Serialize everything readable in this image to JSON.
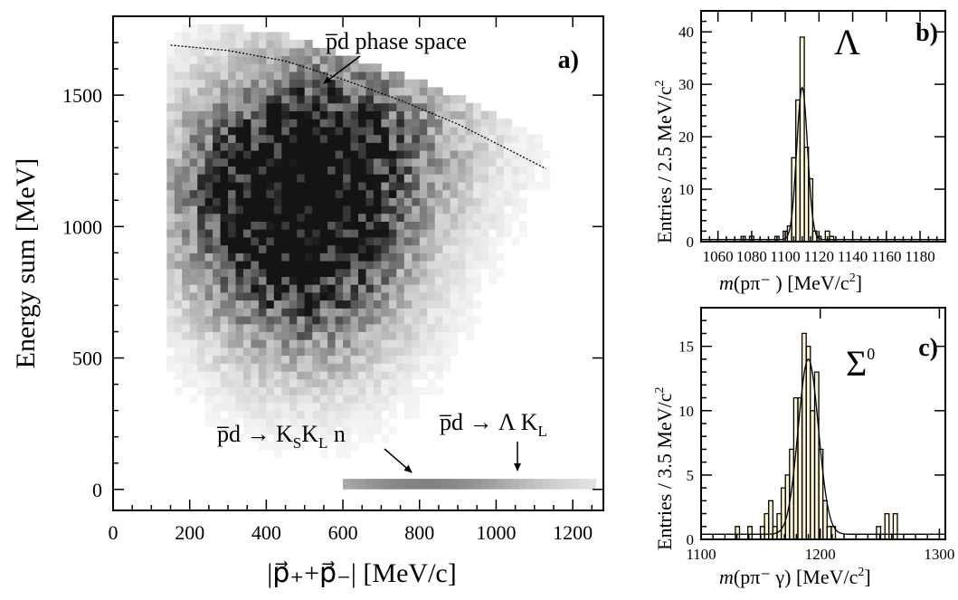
{
  "chart_data": [
    {
      "panel": "a)",
      "type": "heatmap",
      "xlabel": "|p⃗₊+p⃗₋|  [MeV/c]",
      "ylabel": "Energy sum [MeV]",
      "xlim": [
        0,
        1280
      ],
      "ylim": [
        -80,
        1800
      ],
      "x_ticks": [
        0,
        200,
        400,
        600,
        800,
        1000,
        1200
      ],
      "y_ticks": [
        0,
        500,
        1000,
        1500
      ],
      "blobs": [
        {
          "x": 500,
          "y": 950,
          "sx": 180,
          "sy": 320,
          "amp": 1.0
        },
        {
          "x": 600,
          "y": 1350,
          "sx": 230,
          "sy": 250,
          "amp": 0.55
        },
        {
          "x": 350,
          "y": 1100,
          "sx": 150,
          "sy": 250,
          "amp": 0.45
        }
      ],
      "bands": [
        {
          "x_from": 600,
          "x_to": 1250,
          "y": 20,
          "peak_x": 800
        }
      ],
      "phase_space_curve": {
        "x": [
          150,
          300,
          450,
          600,
          750,
          900,
          1050,
          1130
        ],
        "y": [
          1690,
          1670,
          1630,
          1560,
          1480,
          1390,
          1280,
          1220
        ]
      },
      "annotations": [
        {
          "text": "p̅d phase space"
        },
        {
          "text": "p̅d → K",
          "sub1": "S",
          "mid": "K",
          "sub2": "L",
          "tail": " n"
        },
        {
          "text": "p̅d → Λ K",
          "sub1": "L"
        }
      ]
    },
    {
      "panel": "b)",
      "type": "bar",
      "symbol": "Λ",
      "xlabel_italic": "m",
      "xlabel_rest": "(pπ⁻ )  [MeV/c",
      "xlabel_sup": "2",
      "xlabel_end": "]",
      "ylabel": "Entries / 2.5 MeV/c",
      "ylabel_sup": "2",
      "xlim": [
        1050,
        1195
      ],
      "ylim": [
        0,
        44
      ],
      "x_ticks": [
        1060,
        1080,
        1100,
        1120,
        1140,
        1160,
        1180
      ],
      "y_ticks": [
        0,
        10,
        20,
        30,
        40
      ],
      "bin_width": 2.5,
      "bins": [
        {
          "x": 1075,
          "v": 1
        },
        {
          "x": 1080,
          "v": 1
        },
        {
          "x": 1095,
          "v": 1
        },
        {
          "x": 1100,
          "v": 2
        },
        {
          "x": 1102.5,
          "v": 3
        },
        {
          "x": 1105,
          "v": 16
        },
        {
          "x": 1107.5,
          "v": 27
        },
        {
          "x": 1110,
          "v": 39
        },
        {
          "x": 1112.5,
          "v": 18
        },
        {
          "x": 1115,
          "v": 12
        },
        {
          "x": 1117.5,
          "v": 2
        },
        {
          "x": 1120,
          "v": 1
        },
        {
          "x": 1125,
          "v": 2
        },
        {
          "x": 1127.5,
          "v": 1
        }
      ],
      "fit": {
        "mean": 1110,
        "sigma": 3.2,
        "amp": 29,
        "baseline": 0.4
      }
    },
    {
      "panel": "c)",
      "type": "bar",
      "symbol": "Σ",
      "symbol_sup": "0",
      "xlabel_italic": "m",
      "xlabel_rest": "(pπ⁻ γ) [MeV/c",
      "xlabel_sup": "2",
      "xlabel_end": "]",
      "ylabel": "Entries / 3.5 MeV/c",
      "ylabel_sup": "2",
      "xlim": [
        1100,
        1305
      ],
      "ylim": [
        0,
        18
      ],
      "x_ticks": [
        1100,
        1200,
        1300
      ],
      "y_ticks": [
        0,
        5,
        10,
        15
      ],
      "bin_width": 3.5,
      "bins": [
        {
          "x": 1130.5,
          "v": 1
        },
        {
          "x": 1141,
          "v": 1
        },
        {
          "x": 1151.5,
          "v": 1
        },
        {
          "x": 1155,
          "v": 2
        },
        {
          "x": 1158.5,
          "v": 3
        },
        {
          "x": 1162,
          "v": 1
        },
        {
          "x": 1165.5,
          "v": 2
        },
        {
          "x": 1169,
          "v": 4
        },
        {
          "x": 1172.5,
          "v": 5
        },
        {
          "x": 1176,
          "v": 7
        },
        {
          "x": 1179.5,
          "v": 11
        },
        {
          "x": 1183,
          "v": 11
        },
        {
          "x": 1186.5,
          "v": 16
        },
        {
          "x": 1190,
          "v": 15
        },
        {
          "x": 1193.5,
          "v": 10
        },
        {
          "x": 1197,
          "v": 13
        },
        {
          "x": 1200.5,
          "v": 7
        },
        {
          "x": 1204,
          "v": 3
        },
        {
          "x": 1207.5,
          "v": 1
        },
        {
          "x": 1211,
          "v": 1
        },
        {
          "x": 1249,
          "v": 1
        },
        {
          "x": 1256,
          "v": 2
        },
        {
          "x": 1263,
          "v": 2
        }
      ],
      "fit": {
        "mean": 1190,
        "sigma": 8.5,
        "amp": 13.6,
        "baseline": 0.4
      }
    }
  ]
}
